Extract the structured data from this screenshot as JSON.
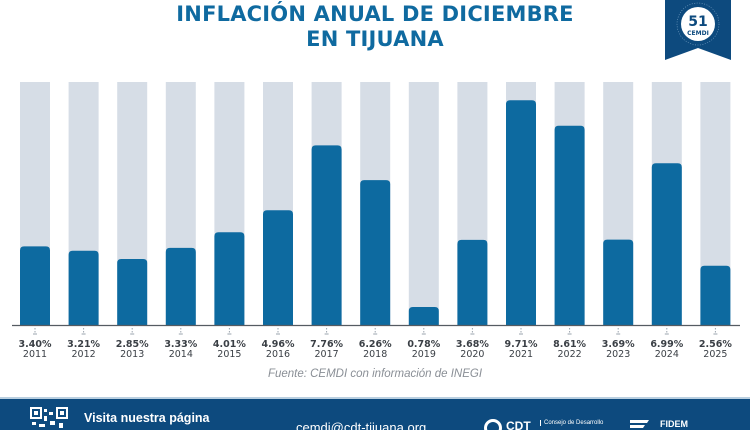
{
  "header": {
    "title_line1": "INFLACIÓN ANUAL DE DICIEMBRE",
    "title_line2": "EN TIJUANA",
    "badge_text": "CEMDI",
    "badge_number": "51"
  },
  "chart_data": {
    "type": "bar",
    "title": "INFLACIÓN ANUAL DE DICIEMBRE EN TIJUANA",
    "xlabel": "",
    "ylabel": "",
    "ylim": [
      0,
      10.5
    ],
    "grid": false,
    "categories": [
      "2011",
      "2012",
      "2013",
      "2014",
      "2015",
      "2016",
      "2017",
      "2018",
      "2019",
      "2020",
      "2021",
      "2022",
      "2023",
      "2024",
      "2025"
    ],
    "values": [
      3.4,
      3.21,
      2.85,
      3.33,
      4.01,
      4.96,
      7.76,
      6.26,
      0.78,
      3.68,
      9.71,
      8.61,
      3.69,
      6.99,
      2.56
    ],
    "value_labels": [
      "3.40%",
      "3.21%",
      "2.85%",
      "3.33%",
      "4.01%",
      "4.96%",
      "7.76%",
      "6.26%",
      "0.78%",
      "3.68%",
      "9.71%",
      "8.61%",
      "3.69%",
      "6.99%",
      "2.56%"
    ],
    "colors": {
      "bar": "#0d6aa0",
      "track": "#d6dde6",
      "label": "#3a3f45"
    }
  },
  "source": "Fuente: CEMDI con información de INEGI",
  "footer": {
    "visit": "Visita nuestra página",
    "email": "cemdi@cdt-tijuana.org",
    "cdt": "CDT",
    "cdt_sub": "Consejo de Desarrollo",
    "fidem": "FIDEM"
  },
  "colors": {
    "title": "#0f6aa0",
    "footer_bg": "#0d4a7e"
  }
}
